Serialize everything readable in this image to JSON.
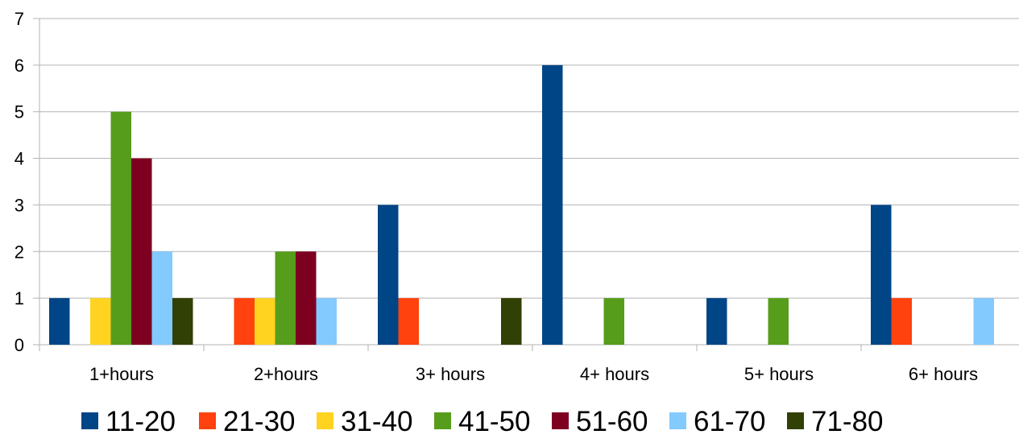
{
  "chart_data": {
    "type": "bar",
    "title": "",
    "xlabel": "",
    "ylabel": "",
    "categories": [
      "1+hours",
      "2+hours",
      "3+ hours",
      "4+ hours",
      "5+ hours",
      "6+ hours"
    ],
    "ylim": [
      0,
      7
    ],
    "yticks": [
      0,
      1,
      2,
      3,
      4,
      5,
      6,
      7
    ],
    "grid": "horizontal",
    "legend_position": "bottom",
    "series": [
      {
        "name": "11-20",
        "color": "#004586",
        "values": [
          1,
          0,
          3,
          6,
          1,
          3
        ]
      },
      {
        "name": "21-30",
        "color": "#ff420e",
        "values": [
          0,
          1,
          1,
          0,
          0,
          1
        ]
      },
      {
        "name": "31-40",
        "color": "#ffd320",
        "values": [
          1,
          1,
          0,
          0,
          0,
          0
        ]
      },
      {
        "name": "41-50",
        "color": "#579d1c",
        "values": [
          5,
          2,
          0,
          1,
          1,
          0
        ]
      },
      {
        "name": "51-60",
        "color": "#7e0021",
        "values": [
          4,
          2,
          0,
          0,
          0,
          0
        ]
      },
      {
        "name": "61-70",
        "color": "#83caff",
        "values": [
          2,
          1,
          0,
          0,
          0,
          1
        ]
      },
      {
        "name": "71-80",
        "color": "#314004",
        "values": [
          1,
          0,
          1,
          0,
          0,
          0
        ]
      }
    ]
  }
}
